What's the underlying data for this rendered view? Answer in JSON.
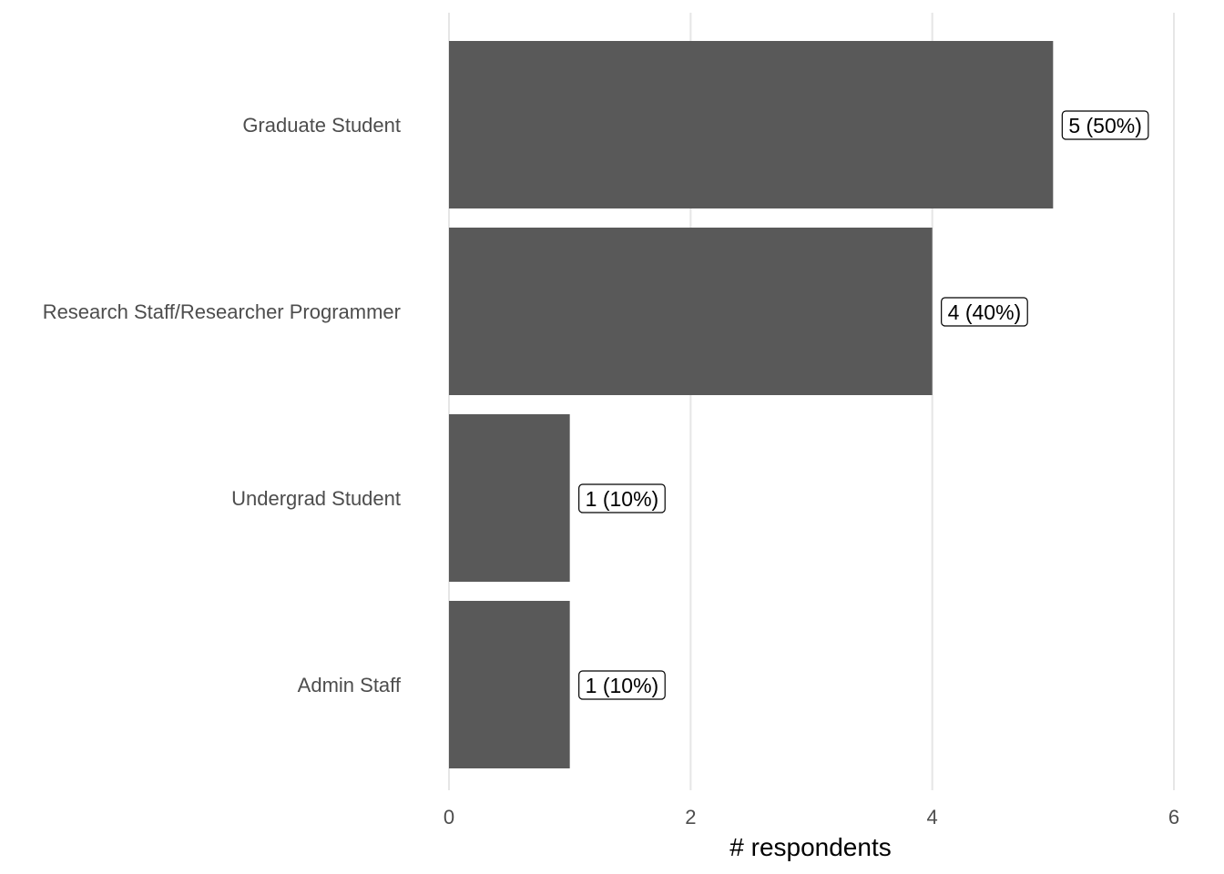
{
  "chart_data": {
    "type": "bar",
    "orientation": "horizontal",
    "categories": [
      "Graduate Student",
      "Research Staff/Researcher Programmer",
      "Undergrad Student",
      "Admin Staff"
    ],
    "values": [
      5,
      4,
      1,
      1
    ],
    "data_labels": [
      "5 (50%)",
      "4 (40%)",
      "1 (10%)",
      "1 (10%)"
    ],
    "xlabel": "# respondents",
    "ylabel": "",
    "title": "",
    "xlim": [
      0,
      6
    ],
    "xticks": [
      0,
      2,
      4,
      6
    ],
    "xtick_labels": [
      "0",
      "2",
      "4",
      "6"
    ],
    "grid": "vertical major",
    "legend": "none",
    "colors": {
      "bar": "#595959",
      "grid": "#e6e6e6",
      "label_box_border": "#000000"
    }
  }
}
